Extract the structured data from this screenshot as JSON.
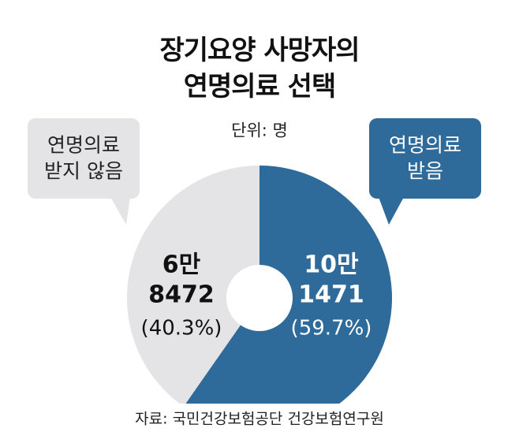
{
  "chart_data": {
    "type": "pie",
    "title": "장기요양 사망자의\n연명의료 선택",
    "subtitle": "단위: 명",
    "categories": [
      "연명의료\n받지 않음",
      "연명의료\n받음"
    ],
    "values": [
      68472,
      101471
    ],
    "value_labels": [
      "6만\n8472",
      "10만\n1471"
    ],
    "percents": [
      40.3,
      59.7
    ],
    "percent_labels": [
      "(40.3%)",
      "(59.7%)"
    ],
    "colors": [
      "#e4e4e6",
      "#2e6a9a"
    ],
    "source": "자료: 국민건강보험공단 건강보험연구원"
  }
}
